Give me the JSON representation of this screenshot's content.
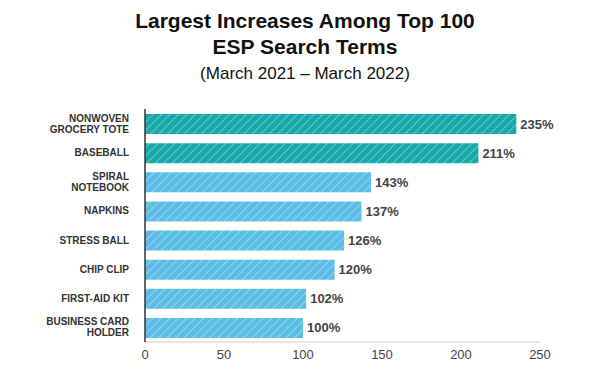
{
  "chart_data": {
    "type": "bar",
    "title": "Largest Increases Among Top 100 ESP Search Terms",
    "subtitle": "(March 2021 – March 2022)",
    "orientation": "horizontal",
    "categories": [
      "NONWOVEN GROCERY TOTE",
      "BASEBALL",
      "SPIRAL NOTEBOOK",
      "NAPKINS",
      "STRESS BALL",
      "CHIP CLIP",
      "FIRST-AID KIT",
      "BUSINESS CARD HOLDER"
    ],
    "values": [
      235,
      211,
      143,
      137,
      126,
      120,
      102,
      100
    ],
    "value_labels": [
      "235%",
      "211%",
      "143%",
      "137%",
      "126%",
      "120%",
      "102%",
      "100%"
    ],
    "data_labels": true,
    "colors": [
      "#17a9a9",
      "#17a9a9",
      "#5bbde6",
      "#5bbde6",
      "#5bbde6",
      "#5bbde6",
      "#5bbde6",
      "#5bbde6"
    ],
    "xlim": [
      0,
      250
    ],
    "xticks": [
      0,
      50,
      100,
      150,
      200,
      250
    ],
    "grid": false
  }
}
